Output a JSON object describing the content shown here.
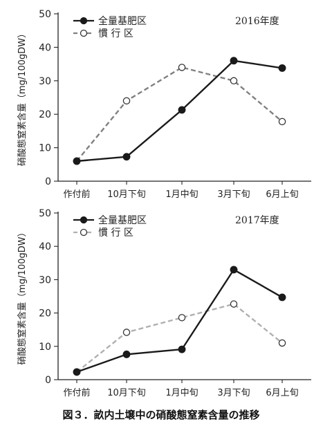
{
  "caption": "図３．畝内土壌中の硝酸態窒素含量の推移",
  "chart_data": [
    {
      "type": "line",
      "title": "2016年度",
      "ylabel": "硝酸態窒素含量（mg/100gDW）",
      "xlabel": "",
      "ylim": [
        0,
        50
      ],
      "yticks": [
        0,
        10,
        20,
        30,
        40,
        50
      ],
      "categories": [
        "作付前",
        "10月下旬",
        "1月中旬",
        "3月下旬",
        "6月上旬"
      ],
      "legend_position": "top-left",
      "grid": false,
      "series": [
        {
          "name": "全量基肥区",
          "values": [
            6.0,
            7.3,
            21.3,
            36.0,
            33.8
          ],
          "color": "#1a1a1a",
          "line": "solid",
          "marker": "filled-circle"
        },
        {
          "name": "慣 行 区",
          "values": [
            6.0,
            24.0,
            34.0,
            30.0,
            17.8
          ],
          "color": "#808080",
          "line": "dashed",
          "marker": "open-circle"
        }
      ]
    },
    {
      "type": "line",
      "title": "2017年度",
      "ylabel": "硝酸態窒素含量（mg/100gDW）",
      "xlabel": "",
      "ylim": [
        0,
        50
      ],
      "yticks": [
        0,
        10,
        20,
        30,
        40,
        50
      ],
      "categories": [
        "作付前",
        "10月下旬",
        "1月中旬",
        "3月下旬",
        "6月上旬"
      ],
      "legend_position": "top-left",
      "grid": false,
      "series": [
        {
          "name": "全量基肥区",
          "values": [
            2.3,
            7.6,
            9.1,
            33.0,
            24.7
          ],
          "color": "#1a1a1a",
          "line": "solid",
          "marker": "filled-circle"
        },
        {
          "name": "慣 行 区",
          "values": [
            2.3,
            14.2,
            18.6,
            22.7,
            11.0
          ],
          "color": "#b0b0b0",
          "line": "dashed",
          "marker": "open-circle"
        }
      ]
    }
  ]
}
